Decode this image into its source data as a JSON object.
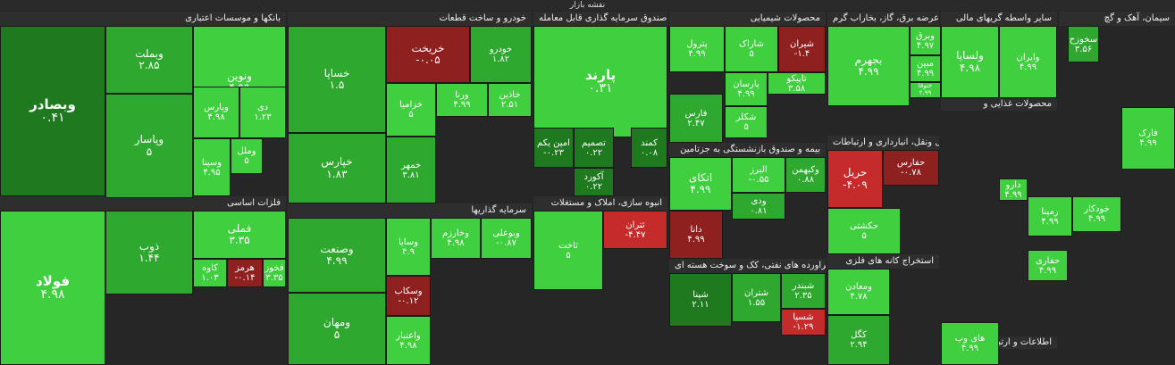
{
  "header": {
    "title": "نقشه بازار"
  },
  "colors": {
    "g3": "#3fcf3f",
    "g2": "#2ea82e",
    "g1": "#1f7a1f",
    "r1": "#8f2020",
    "r2": "#c62b2b",
    "dark": "#333333"
  },
  "sectors": [
    {
      "label": "بانکها و موسسات اعتباری"
    },
    {
      "label": "خودرو و ساخت قطعات"
    },
    {
      "label": "صندوق سرمایه گذاری قابل معامله"
    },
    {
      "label": "محصولات شیمیایی"
    },
    {
      "label": "عرضه برق، گاز، بخاراب گرم"
    },
    {
      "label": "سایر واسطه گریهای مالی"
    },
    {
      "label": "سیمان، آهک و گچ"
    },
    {
      "label": "فلزات اساسی"
    },
    {
      "label": "سرمایه گذاریها"
    },
    {
      "label": "انبوه سازی، املاک و مستغلات"
    },
    {
      "label": "بیمه و صندوق بازنشستگی به جزتامین"
    },
    {
      "label": "حمل ونقل، انبارداری و ارتباطات"
    },
    {
      "label": "فراورده های نفتی، کک و سوخت هسته ای"
    },
    {
      "label": "استخراج کانه های فلزی"
    },
    {
      "label": "محصولات غذایی و"
    },
    {
      "label": "اطلاعات و ارتباطات"
    }
  ],
  "tiles": [
    {
      "name": "وبصادر",
      "value": "۰.۴۱"
    },
    {
      "name": "وبملت",
      "value": "۲.۸۵"
    },
    {
      "name": "ونوین",
      "value": "۴.۹۹"
    },
    {
      "name": "وپارس",
      "value": "۴.۹۸"
    },
    {
      "name": "دی",
      "value": "۱.۲۳"
    },
    {
      "name": "وپاسار",
      "value": "۵"
    },
    {
      "name": "وسینا",
      "value": "۴.۹۵"
    },
    {
      "name": "وملل",
      "value": "۵"
    },
    {
      "name": "خساپا",
      "value": "۱.۵"
    },
    {
      "name": "خریخت",
      "value": "-۰.۰۵"
    },
    {
      "name": "خودرو",
      "value": "۱.۸۲"
    },
    {
      "name": "خپارس",
      "value": "۱.۸۳"
    },
    {
      "name": "خزامیا",
      "value": "۵"
    },
    {
      "name": "ورنا",
      "value": "۴.۹۹"
    },
    {
      "name": "خاذین",
      "value": "۲.۵۱"
    },
    {
      "name": "خمهر",
      "value": "۳.۸۱"
    },
    {
      "name": "پارند",
      "value": "۰.۳۱"
    },
    {
      "name": "امین یکم",
      "value": "-۰.۲۳"
    },
    {
      "name": "تصمیم",
      "value": "۰.۲۲"
    },
    {
      "name": "آکورد",
      "value": "۰.۲۲"
    },
    {
      "name": "پترول",
      "value": "۴.۹۹"
    },
    {
      "name": "شاراک",
      "value": "۵"
    },
    {
      "name": "شیران",
      "value": "-۱.۴"
    },
    {
      "name": "پارسان",
      "value": "۴.۹۹"
    },
    {
      "name": "تاپیکو",
      "value": "۳.۵۸"
    },
    {
      "name": "فارس",
      "value": "۲.۴۷"
    },
    {
      "name": "شکلر",
      "value": "۵"
    },
    {
      "name": "بجهرم",
      "value": "۴.۹۹"
    },
    {
      "name": "وبرق",
      "value": "۴.۹۷"
    },
    {
      "name": "مبین",
      "value": "۴.۹۹"
    },
    {
      "name": "ولساپا",
      "value": "۴.۹۸"
    },
    {
      "name": "وایران",
      "value": "۴.۹۹"
    },
    {
      "name": "سخوزح",
      "value": "۳.۵۶"
    },
    {
      "name": "فولاد",
      "value": "۴.۹۸"
    },
    {
      "name": "ذوب",
      "value": "۱.۴۴"
    },
    {
      "name": "فملی",
      "value": "۳.۳۵"
    },
    {
      "name": "کاوه",
      "value": "۱.۰۳"
    },
    {
      "name": "هرمز",
      "value": "-۰.۱۴"
    },
    {
      "name": "فخوز",
      "value": "۳.۳۵"
    },
    {
      "name": "وصنعت",
      "value": "۴.۹۹"
    },
    {
      "name": "وسایا",
      "value": "۴.۹"
    },
    {
      "name": "وخارزم",
      "value": "۴.۹۸"
    },
    {
      "name": "وبوعلی",
      "value": "-۰.۸۷"
    },
    {
      "name": "وسکاب",
      "value": "-۰.۱۲"
    },
    {
      "name": "ومهان",
      "value": "۵"
    },
    {
      "name": "واعتبار",
      "value": "۴.۹۸"
    },
    {
      "name": "ثاخت",
      "value": "۵"
    },
    {
      "name": "ثتران",
      "value": "-۴.۴۷"
    },
    {
      "name": "اتکای",
      "value": "۴.۹۹"
    },
    {
      "name": "البرز",
      "value": "-۰.۵۵"
    },
    {
      "name": "وکبهمن",
      "value": "۰.۸۸"
    },
    {
      "name": "دانا",
      "value": "۴.۹۹"
    },
    {
      "name": "ودی",
      "value": "۰.۸۱"
    },
    {
      "name": "حریل",
      "value": "-۴.۰۹"
    },
    {
      "name": "حفارس",
      "value": "-۰.۷۸"
    },
    {
      "name": "حکشتی",
      "value": "۵"
    },
    {
      "name": "شپنا",
      "value": "۲.۱۱"
    },
    {
      "name": "شتران",
      "value": "۱.۵۵"
    },
    {
      "name": "شبندر",
      "value": "۲.۳۵"
    },
    {
      "name": "شسپا",
      "value": "-۱.۲۹"
    },
    {
      "name": "ومعادن",
      "value": "۴.۷۸"
    },
    {
      "name": "کگل",
      "value": "۲.۹۴"
    },
    {
      "name": "های وب",
      "value": "۴.۹۹"
    },
    {
      "name": "فارک",
      "value": "۴.۹۹"
    },
    {
      "name": "رمپنا",
      "value": "۴.۹۹"
    },
    {
      "name": "حفاری",
      "value": "۴.۹۹"
    },
    {
      "name": "خودکار",
      "value": "۴.۹۹"
    },
    {
      "name": "ختوقا",
      "value": "۴.۹۹"
    },
    {
      "name": "دارو",
      "value": "۴.۹۹"
    },
    {
      "name": "کمند",
      "value": "۰.۰۸"
    }
  ]
}
